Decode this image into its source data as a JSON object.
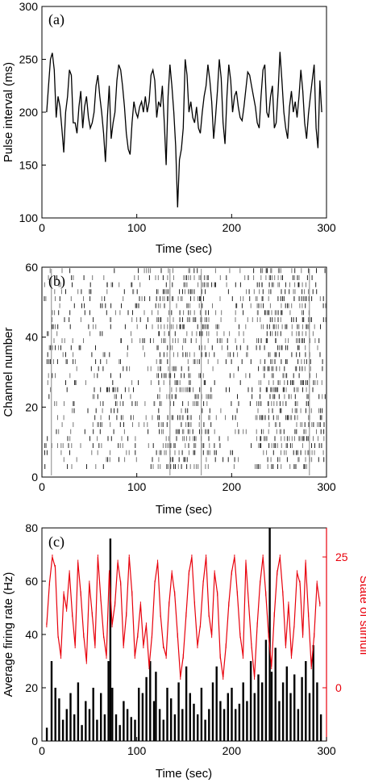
{
  "chart_data": [
    {
      "panel_label": "(a)",
      "type": "line",
      "xlabel": "Time (sec)",
      "ylabel": "Pulse interval (ms)",
      "xlim": [
        0,
        300
      ],
      "ylim": [
        100,
        300
      ],
      "xticks": [
        "0",
        "100",
        "200",
        "300"
      ],
      "yticks": [
        "100",
        "150",
        "200",
        "250",
        "300"
      ],
      "series": [
        {
          "color": "#000000",
          "x": [
            5,
            7,
            9,
            11,
            13,
            15,
            17,
            19,
            21,
            23,
            25,
            27,
            29,
            31,
            33,
            35,
            37,
            39,
            41,
            43,
            45,
            47,
            49,
            51,
            53,
            55,
            57,
            59,
            61,
            63,
            65,
            67,
            69,
            71,
            73,
            75,
            77,
            79,
            81,
            83,
            85,
            87,
            89,
            91,
            93,
            95,
            97,
            99,
            101,
            103,
            105,
            107,
            109,
            111,
            113,
            115,
            117,
            119,
            121,
            123,
            125,
            127,
            129,
            131,
            133,
            135,
            137,
            139,
            141,
            143,
            145,
            147,
            149,
            151,
            153,
            155,
            157,
            159,
            161,
            163,
            165,
            167,
            169,
            171,
            173,
            175,
            177,
            179,
            181,
            183,
            185,
            187,
            189,
            191,
            193,
            195,
            197,
            199,
            201,
            203,
            205,
            207,
            209,
            211,
            213,
            215,
            217,
            219,
            221,
            223,
            225,
            227,
            229,
            231,
            233,
            235,
            237,
            239,
            241,
            243,
            245,
            247,
            249,
            251,
            253,
            255,
            257,
            259,
            261,
            263,
            265,
            267,
            269,
            271,
            273,
            275,
            277,
            279,
            281,
            283,
            285,
            287,
            289,
            291,
            293,
            295
          ],
          "y": [
            200,
            225,
            250,
            256,
            240,
            195,
            215,
            205,
            185,
            162,
            200,
            215,
            240,
            235,
            190,
            190,
            180,
            205,
            220,
            185,
            205,
            215,
            195,
            185,
            190,
            200,
            225,
            235,
            215,
            200,
            180,
            153,
            195,
            225,
            175,
            190,
            200,
            230,
            245,
            240,
            225,
            205,
            180,
            165,
            160,
            190,
            210,
            200,
            195,
            205,
            210,
            200,
            215,
            200,
            210,
            235,
            240,
            230,
            195,
            210,
            205,
            225,
            190,
            150,
            215,
            245,
            225,
            200,
            168,
            110,
            155,
            165,
            185,
            250,
            235,
            200,
            210,
            195,
            190,
            205,
            185,
            180,
            200,
            215,
            225,
            245,
            230,
            210,
            175,
            195,
            220,
            250,
            232,
            190,
            170,
            215,
            245,
            230,
            200,
            215,
            220,
            205,
            195,
            192,
            205,
            222,
            238,
            235,
            225,
            215,
            205,
            190,
            185,
            215,
            240,
            245,
            200,
            195,
            215,
            225,
            185,
            190,
            220,
            257,
            230,
            200,
            185,
            175,
            205,
            220,
            200,
            210,
            195,
            215,
            240,
            220,
            190,
            175,
            198,
            215,
            230,
            245,
            185,
            166,
            230,
            200
          ]
        }
      ]
    },
    {
      "panel_label": "(b)",
      "type": "scatter",
      "subtype": "raster",
      "xlabel": "Time (sec)",
      "ylabel": "Channel number",
      "xlim": [
        0,
        300
      ],
      "ylim": [
        0,
        60
      ],
      "xticks": [
        "0",
        "100",
        "200",
        "300"
      ],
      "yticks": [
        "0",
        "20",
        "40",
        "60"
      ],
      "channels": [
        3,
        5,
        7,
        9,
        11,
        13,
        15,
        17,
        19,
        21,
        23,
        25,
        27,
        29,
        31,
        33,
        35,
        37,
        39,
        41,
        43,
        45,
        47,
        49,
        51,
        53,
        55,
        57,
        59
      ],
      "dense_time_bands": [
        [
          120,
          175
        ],
        [
          225,
          285
        ]
      ],
      "vertical_markers": [
        10,
        135,
        168,
        282
      ]
    },
    {
      "panel_label": "(c)",
      "type": "bar",
      "xlabel": "Time (sec)",
      "ylabel": "Average firing rate (Hz)",
      "y2label": "State of stimuli",
      "xlim": [
        0,
        300
      ],
      "ylim": [
        0,
        80
      ],
      "y2ticks": [
        "0",
        "25"
      ],
      "xticks": [
        "0",
        "100",
        "200",
        "300"
      ],
      "yticks": [
        "0",
        "20",
        "40",
        "60",
        "80"
      ],
      "series": [
        {
          "axis": "left",
          "color": "#000000",
          "x": [
            5,
            10,
            14,
            18,
            22,
            26,
            30,
            34,
            38,
            42,
            46,
            50,
            54,
            58,
            62,
            66,
            70,
            72,
            74,
            78,
            82,
            86,
            90,
            94,
            98,
            102,
            106,
            110,
            114,
            118,
            120,
            124,
            128,
            132,
            136,
            140,
            144,
            148,
            152,
            156,
            160,
            164,
            168,
            172,
            176,
            180,
            184,
            188,
            192,
            196,
            200,
            204,
            208,
            212,
            216,
            220,
            224,
            228,
            232,
            236,
            240,
            242,
            246,
            250,
            254,
            258,
            262,
            266,
            270,
            274,
            278,
            282,
            286,
            290,
            294
          ],
          "values": [
            5,
            30,
            20,
            16,
            8,
            12,
            18,
            10,
            22,
            6,
            15,
            12,
            20,
            8,
            18,
            10,
            30,
            76,
            20,
            10,
            6,
            15,
            12,
            9,
            8,
            20,
            18,
            24,
            30,
            15,
            26,
            12,
            8,
            20,
            16,
            10,
            22,
            12,
            28,
            18,
            14,
            10,
            20,
            8,
            12,
            22,
            28,
            15,
            12,
            18,
            20,
            12,
            14,
            22,
            15,
            30,
            18,
            25,
            22,
            38,
            80,
            26,
            35,
            15,
            22,
            28,
            18,
            25,
            12,
            24,
            30,
            18,
            36,
            22,
            10
          ]
        },
        {
          "axis": "right",
          "color": "#e8000b",
          "x": [
            5,
            8,
            11,
            14,
            17,
            20,
            23,
            26,
            29,
            32,
            35,
            38,
            41,
            44,
            47,
            50,
            53,
            56,
            59,
            62,
            65,
            68,
            71,
            74,
            77,
            80,
            83,
            86,
            89,
            92,
            95,
            98,
            101,
            104,
            107,
            110,
            113,
            116,
            119,
            122,
            125,
            128,
            131,
            134,
            137,
            140,
            143,
            146,
            149,
            152,
            155,
            158,
            161,
            164,
            167,
            170,
            173,
            176,
            179,
            182,
            185,
            188,
            191,
            194,
            197,
            200,
            203,
            206,
            209,
            212,
            215,
            218,
            221,
            224,
            227,
            230,
            233,
            236,
            239,
            242,
            245,
            248,
            251,
            254,
            257,
            260,
            263,
            266,
            269,
            272,
            275,
            278,
            281,
            284,
            287,
            290,
            293
          ],
          "values": [
            12,
            20,
            25,
            23,
            10,
            6,
            18,
            15,
            22,
            14,
            8,
            24,
            18,
            10,
            5,
            20,
            14,
            8,
            25,
            17,
            10,
            6,
            22,
            12,
            16,
            24,
            20,
            8,
            14,
            25,
            18,
            6,
            10,
            16,
            8,
            12,
            4,
            10,
            20,
            24,
            14,
            8,
            6,
            16,
            22,
            18,
            10,
            2,
            6,
            14,
            22,
            25,
            16,
            8,
            12,
            20,
            25,
            14,
            10,
            22,
            18,
            6,
            2,
            8,
            16,
            22,
            25,
            18,
            10,
            6,
            24,
            16,
            8,
            2,
            12,
            20,
            25,
            18,
            10,
            4,
            14,
            22,
            25,
            18,
            8,
            16,
            6,
            12,
            22,
            20,
            10,
            24,
            14,
            4,
            10,
            20,
            16
          ]
        }
      ]
    }
  ]
}
